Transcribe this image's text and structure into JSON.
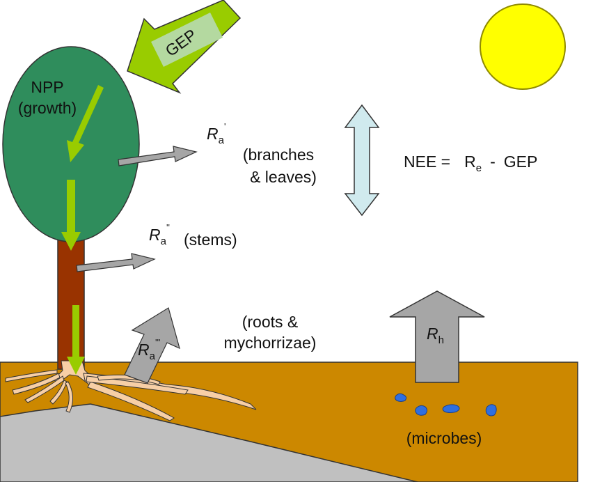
{
  "labels": {
    "gep_arrow": "GEP",
    "npp_line1": "NPP",
    "npp_line2": "(growth)",
    "ra_symbol": "R",
    "ra_subscript": "a",
    "ra1_prime": "'",
    "ra2_prime": "''",
    "ra3_prime": "'''",
    "branches_line1": "(branches",
    "branches_line2": "& leaves)",
    "stems": "(stems)",
    "roots_line1": "(roots &",
    "roots_line2": "mychorrizae)",
    "rh_symbol": "R",
    "rh_subscript": "h",
    "microbes": "(microbes)",
    "nee_lhs": "NEE =",
    "nee_re_symbol": "R",
    "nee_re_subscript": "e",
    "nee_minus": "-",
    "nee_gep": "GEP"
  },
  "colors": {
    "sun_fill": "#ffff00",
    "sun_stroke": "#8f8a00",
    "canopy": "#2f8d5c",
    "trunk": "#993300",
    "soil": "#cc8800",
    "bedrock": "#c0c0c0",
    "green_arrow": "#99cc00",
    "gep_inner": "#b4d9a0",
    "grey_arrow": "#a6a6a6",
    "flux_arrow": "#d0eaee",
    "microbe": "#2f6fe0",
    "roots": "#f7cfa6"
  }
}
